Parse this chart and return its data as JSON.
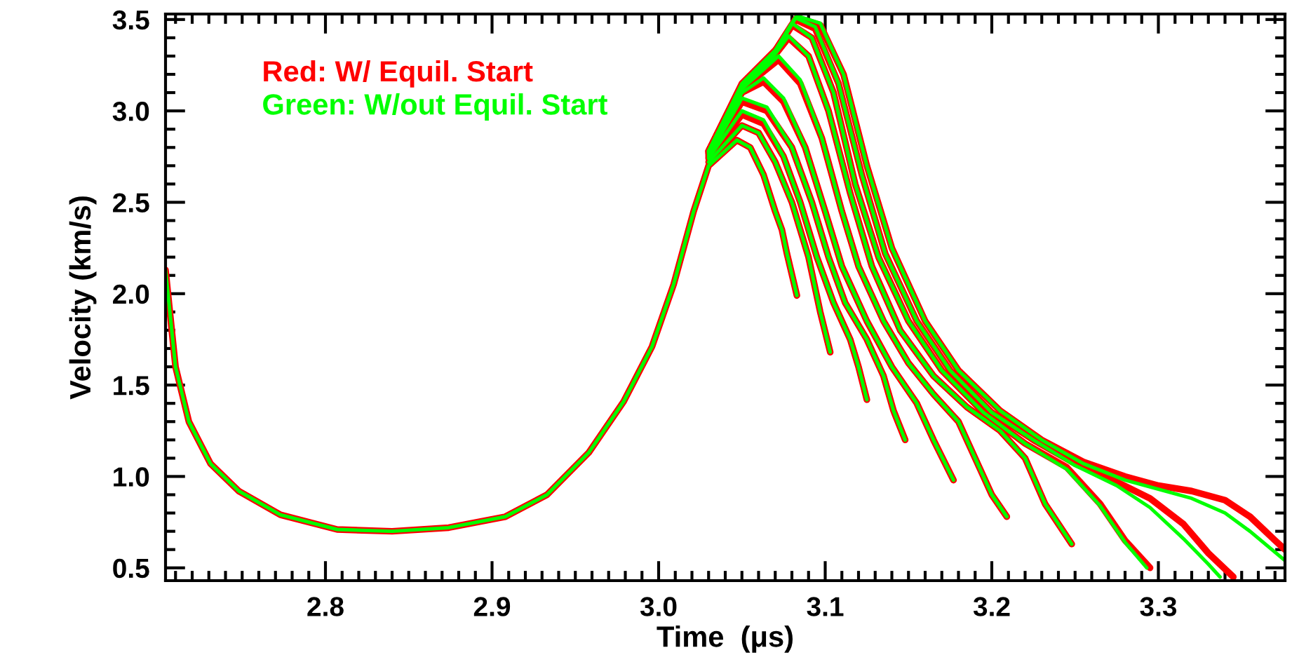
{
  "chart_data": {
    "type": "line",
    "xlabel": "Time  (μs)",
    "ylabel": "Velocity (km/s)",
    "xlim": [
      2.704,
      3.376
    ],
    "ylim": [
      0.43,
      3.53
    ],
    "xticks": [
      {
        "value": 2.8,
        "label": "2.8"
      },
      {
        "value": 2.9,
        "label": "2.9"
      },
      {
        "value": 3.0,
        "label": "3.0"
      },
      {
        "value": 3.1,
        "label": "3.1"
      },
      {
        "value": 3.2,
        "label": "3.2"
      },
      {
        "value": 3.3,
        "label": "3.3"
      }
    ],
    "yticks": [
      {
        "value": 0.5,
        "label": "0.5"
      },
      {
        "value": 1.0,
        "label": "1.0"
      },
      {
        "value": 1.5,
        "label": "1.5"
      },
      {
        "value": 2.0,
        "label": "2.0"
      },
      {
        "value": 2.5,
        "label": "2.5"
      },
      {
        "value": 3.0,
        "label": "3.0"
      },
      {
        "value": 3.5,
        "label": "3.5"
      }
    ],
    "grid": false,
    "legend": "top left",
    "marker": "none",
    "line_style": "solid",
    "series": [
      {
        "name": "Red: W/ Equil. Start",
        "color": "#ff0000",
        "x": [
          2.704,
          2.71,
          2.718,
          2.731,
          2.748,
          2.773,
          2.807,
          2.84,
          2.874,
          2.908,
          2.933,
          2.958,
          2.979,
          2.996,
          3.009,
          3.021,
          3.03,
          3.047,
          3.055,
          3.063,
          3.07,
          3.074,
          3.077,
          3.083
        ],
        "values": [
          2.13,
          1.6,
          1.3,
          1.07,
          0.92,
          0.79,
          0.71,
          0.7,
          0.72,
          0.78,
          0.9,
          1.13,
          1.41,
          1.71,
          2.05,
          2.45,
          2.7,
          2.84,
          2.8,
          2.65,
          2.45,
          2.35,
          2.22,
          1.99
        ]
      },
      {
        "color": "#ff0000",
        "x": [
          3.03,
          3.05,
          3.06,
          3.07,
          3.08,
          3.09,
          3.097,
          3.103
        ],
        "values": [
          2.72,
          2.92,
          2.88,
          2.72,
          2.5,
          2.2,
          1.9,
          1.68
        ]
      },
      {
        "color": "#ff0000",
        "x": [
          3.03,
          3.05,
          3.063,
          3.075,
          3.085,
          3.095,
          3.105,
          3.115,
          3.12,
          3.125
        ],
        "values": [
          2.74,
          2.98,
          2.93,
          2.75,
          2.5,
          2.2,
          1.95,
          1.75,
          1.6,
          1.42
        ]
      },
      {
        "color": "#ff0000",
        "x": [
          3.03,
          3.05,
          3.065,
          3.08,
          3.092,
          3.102,
          3.112,
          3.125,
          3.135,
          3.141,
          3.148
        ],
        "values": [
          2.75,
          3.05,
          3.0,
          2.8,
          2.5,
          2.2,
          1.95,
          1.75,
          1.55,
          1.36,
          1.2
        ]
      },
      {
        "color": "#ff0000",
        "x": [
          3.03,
          3.05,
          3.063,
          3.075,
          3.088,
          3.1,
          3.11,
          3.125,
          3.14,
          3.155,
          3.165,
          3.177
        ],
        "values": [
          2.76,
          3.1,
          3.16,
          3.05,
          2.8,
          2.45,
          2.15,
          1.85,
          1.6,
          1.4,
          1.2,
          0.98
        ]
      },
      {
        "color": "#ff0000",
        "x": [
          3.03,
          3.05,
          3.072,
          3.085,
          3.098,
          3.11,
          3.12,
          3.135,
          3.15,
          3.165,
          3.18,
          3.19,
          3.2,
          3.209
        ],
        "values": [
          2.77,
          3.12,
          3.28,
          3.15,
          2.85,
          2.45,
          2.15,
          1.85,
          1.62,
          1.45,
          1.3,
          1.1,
          0.9,
          0.78
        ]
      },
      {
        "color": "#ff0000",
        "x": [
          3.03,
          3.05,
          3.065,
          3.078,
          3.09,
          3.102,
          3.115,
          3.128,
          3.145,
          3.165,
          3.185,
          3.205,
          3.22,
          3.232,
          3.248
        ],
        "values": [
          2.77,
          3.13,
          3.25,
          3.4,
          3.3,
          3.0,
          2.55,
          2.15,
          1.8,
          1.55,
          1.38,
          1.25,
          1.1,
          0.85,
          0.63
        ]
      },
      {
        "color": "#ff0000",
        "x": [
          3.03,
          3.05,
          3.068,
          3.08,
          3.092,
          3.105,
          3.118,
          3.132,
          3.15,
          3.17,
          3.195,
          3.22,
          3.245,
          3.265,
          3.28,
          3.295
        ],
        "values": [
          2.78,
          3.14,
          3.3,
          3.47,
          3.4,
          3.1,
          2.6,
          2.2,
          1.85,
          1.58,
          1.35,
          1.18,
          1.05,
          0.85,
          0.65,
          0.5
        ]
      },
      {
        "color": "#ff0000",
        "x": [
          3.03,
          3.05,
          3.07,
          3.082,
          3.094,
          3.108,
          3.122,
          3.136,
          3.155,
          3.175,
          3.2,
          3.225,
          3.25,
          3.275,
          3.295,
          3.315,
          3.33,
          3.345
        ],
        "values": [
          2.78,
          3.14,
          3.33,
          3.5,
          3.45,
          3.15,
          2.65,
          2.22,
          1.85,
          1.58,
          1.35,
          1.2,
          1.07,
          0.97,
          0.88,
          0.74,
          0.58,
          0.45
        ]
      },
      {
        "color": "#ff0000",
        "x": [
          3.03,
          3.05,
          3.072,
          3.083,
          3.097,
          3.111,
          3.125,
          3.14,
          3.16,
          3.18,
          3.205,
          3.23,
          3.255,
          3.28,
          3.3,
          3.32,
          3.34,
          3.355,
          3.37,
          3.376
        ],
        "values": [
          2.78,
          3.15,
          3.35,
          3.51,
          3.47,
          3.2,
          2.7,
          2.25,
          1.85,
          1.58,
          1.36,
          1.2,
          1.08,
          1.0,
          0.95,
          0.92,
          0.87,
          0.78,
          0.65,
          0.6
        ]
      },
      {
        "name": "Green: W/out Equil. Start",
        "color": "#00ff00",
        "x": [
          2.704,
          2.71,
          2.718,
          2.731,
          2.748,
          2.773,
          2.807,
          2.84,
          2.874,
          2.908,
          2.933,
          2.958,
          2.979,
          2.996,
          3.009,
          3.021,
          3.03,
          3.047,
          3.055,
          3.063,
          3.07,
          3.074,
          3.077,
          3.083
        ],
        "values": [
          2.13,
          1.6,
          1.3,
          1.07,
          0.92,
          0.79,
          0.71,
          0.7,
          0.72,
          0.78,
          0.9,
          1.13,
          1.41,
          1.71,
          2.05,
          2.45,
          2.7,
          2.84,
          2.8,
          2.65,
          2.45,
          2.35,
          2.22,
          1.99
        ]
      },
      {
        "color": "#00ff00",
        "x": [
          3.03,
          3.05,
          3.06,
          3.07,
          3.08,
          3.09,
          3.097,
          3.103
        ],
        "values": [
          2.72,
          2.92,
          2.88,
          2.72,
          2.5,
          2.2,
          1.9,
          1.68
        ]
      },
      {
        "color": "#00ff00",
        "x": [
          3.03,
          3.05,
          3.063,
          3.075,
          3.085,
          3.095,
          3.105,
          3.115,
          3.12,
          3.125
        ],
        "values": [
          2.74,
          3.0,
          2.95,
          2.75,
          2.5,
          2.2,
          1.95,
          1.75,
          1.6,
          1.42
        ]
      },
      {
        "color": "#00ff00",
        "x": [
          3.03,
          3.05,
          3.065,
          3.08,
          3.092,
          3.102,
          3.112,
          3.125,
          3.135,
          3.141,
          3.148
        ],
        "values": [
          2.75,
          3.07,
          3.02,
          2.8,
          2.5,
          2.2,
          1.95,
          1.75,
          1.55,
          1.36,
          1.2
        ]
      },
      {
        "color": "#00ff00",
        "x": [
          3.03,
          3.05,
          3.063,
          3.075,
          3.088,
          3.1,
          3.11,
          3.125,
          3.14,
          3.155,
          3.165,
          3.177
        ],
        "values": [
          2.76,
          3.1,
          3.18,
          3.07,
          2.8,
          2.45,
          2.15,
          1.85,
          1.6,
          1.4,
          1.2,
          0.98
        ]
      },
      {
        "color": "#00ff00",
        "x": [
          3.03,
          3.05,
          3.072,
          3.085,
          3.098,
          3.11,
          3.12,
          3.135,
          3.15,
          3.165,
          3.18,
          3.19,
          3.2,
          3.209
        ],
        "values": [
          2.77,
          3.12,
          3.3,
          3.17,
          2.85,
          2.45,
          2.15,
          1.85,
          1.62,
          1.45,
          1.3,
          1.1,
          0.9,
          0.78
        ]
      },
      {
        "color": "#00ff00",
        "x": [
          3.03,
          3.05,
          3.065,
          3.078,
          3.09,
          3.102,
          3.115,
          3.128,
          3.145,
          3.165,
          3.185,
          3.205,
          3.22,
          3.232,
          3.248
        ],
        "values": [
          2.77,
          3.13,
          3.25,
          3.41,
          3.3,
          3.0,
          2.55,
          2.15,
          1.8,
          1.55,
          1.38,
          1.25,
          1.1,
          0.85,
          0.63
        ]
      },
      {
        "color": "#00ff00",
        "x": [
          3.03,
          3.05,
          3.068,
          3.08,
          3.092,
          3.105,
          3.118,
          3.132,
          3.15,
          3.17,
          3.195,
          3.22,
          3.245,
          3.265,
          3.28,
          3.293
        ],
        "values": [
          2.78,
          3.14,
          3.3,
          3.48,
          3.4,
          3.1,
          2.6,
          2.2,
          1.85,
          1.58,
          1.35,
          1.18,
          1.04,
          0.84,
          0.64,
          0.5
        ]
      },
      {
        "color": "#00ff00",
        "x": [
          3.03,
          3.05,
          3.07,
          3.082,
          3.094,
          3.108,
          3.122,
          3.136,
          3.155,
          3.175,
          3.2,
          3.225,
          3.25,
          3.275,
          3.295,
          3.315,
          3.33,
          3.337
        ],
        "values": [
          2.78,
          3.14,
          3.33,
          3.51,
          3.46,
          3.15,
          2.65,
          2.22,
          1.85,
          1.58,
          1.35,
          1.2,
          1.06,
          0.95,
          0.83,
          0.66,
          0.52,
          0.45
        ]
      },
      {
        "color": "#00ff00",
        "x": [
          3.03,
          3.05,
          3.072,
          3.083,
          3.097,
          3.111,
          3.125,
          3.14,
          3.16,
          3.18,
          3.205,
          3.23,
          3.255,
          3.28,
          3.3,
          3.32,
          3.34,
          3.355,
          3.376
        ],
        "values": [
          2.78,
          3.15,
          3.35,
          3.52,
          3.48,
          3.2,
          2.7,
          2.25,
          1.85,
          1.58,
          1.36,
          1.2,
          1.07,
          0.98,
          0.93,
          0.88,
          0.8,
          0.7,
          0.54
        ]
      }
    ]
  }
}
